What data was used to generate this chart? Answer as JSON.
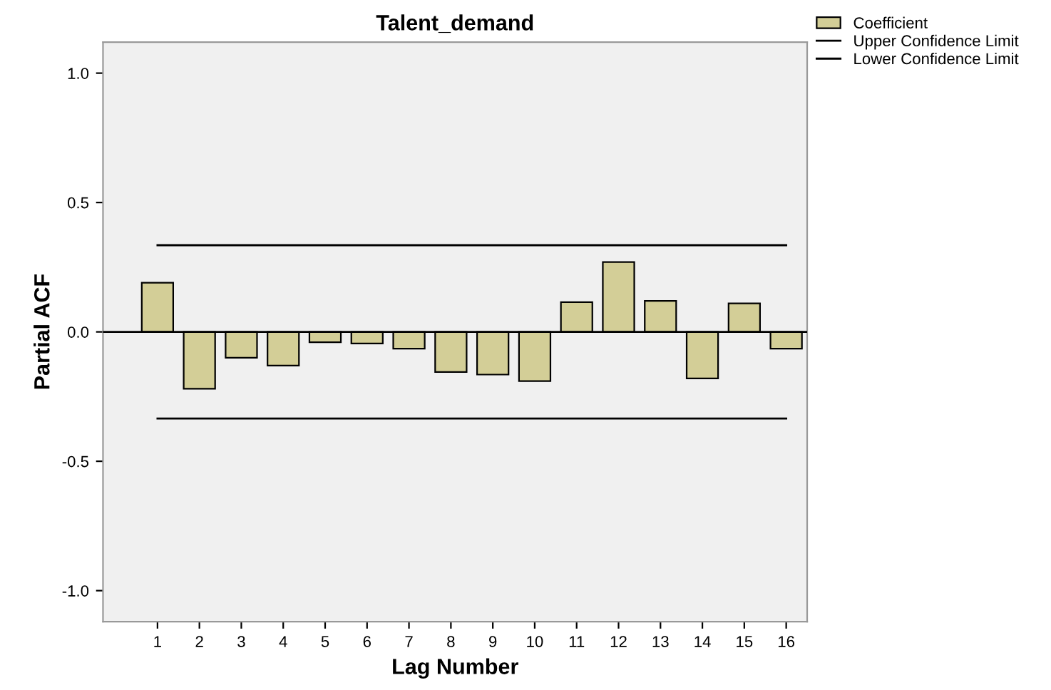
{
  "chart_data": {
    "type": "bar",
    "title": "Talent_demand",
    "xlabel": "Lag Number",
    "ylabel": "Partial ACF",
    "categories": [
      "1",
      "2",
      "3",
      "4",
      "5",
      "6",
      "7",
      "8",
      "9",
      "10",
      "11",
      "12",
      "13",
      "14",
      "15",
      "16"
    ],
    "series": [
      {
        "name": "Coefficient",
        "color": "#d3ce97",
        "values": [
          0.19,
          -0.22,
          -0.1,
          -0.13,
          -0.04,
          -0.045,
          -0.065,
          -0.155,
          -0.165,
          -0.19,
          0.115,
          0.27,
          0.12,
          -0.18,
          0.11,
          -0.065
        ]
      },
      {
        "name": "Upper Confidence Limit",
        "type": "line",
        "color": "#000000",
        "values": [
          0.335,
          0.335,
          0.335,
          0.335,
          0.335,
          0.335,
          0.335,
          0.335,
          0.335,
          0.335,
          0.335,
          0.335,
          0.335,
          0.335,
          0.335,
          0.335
        ]
      },
      {
        "name": "Lower Confidence Limit",
        "type": "line",
        "color": "#000000",
        "values": [
          -0.335,
          -0.335,
          -0.335,
          -0.335,
          -0.335,
          -0.335,
          -0.335,
          -0.335,
          -0.335,
          -0.335,
          -0.335,
          -0.335,
          -0.335,
          -0.335,
          -0.335,
          -0.335
        ]
      }
    ],
    "ylim": [
      -1.12,
      1.12
    ],
    "yticks": [
      {
        "value": -1.0,
        "label": "-1.0"
      },
      {
        "value": -0.5,
        "label": "-0.5"
      },
      {
        "value": 0.0,
        "label": "0.0"
      },
      {
        "value": 0.5,
        "label": "0.5"
      },
      {
        "value": 1.0,
        "label": "1.0"
      }
    ],
    "ref_lines": [
      {
        "axis": "y",
        "value": 0,
        "color": "#000000"
      }
    ],
    "legend": "top right",
    "grid": false
  }
}
